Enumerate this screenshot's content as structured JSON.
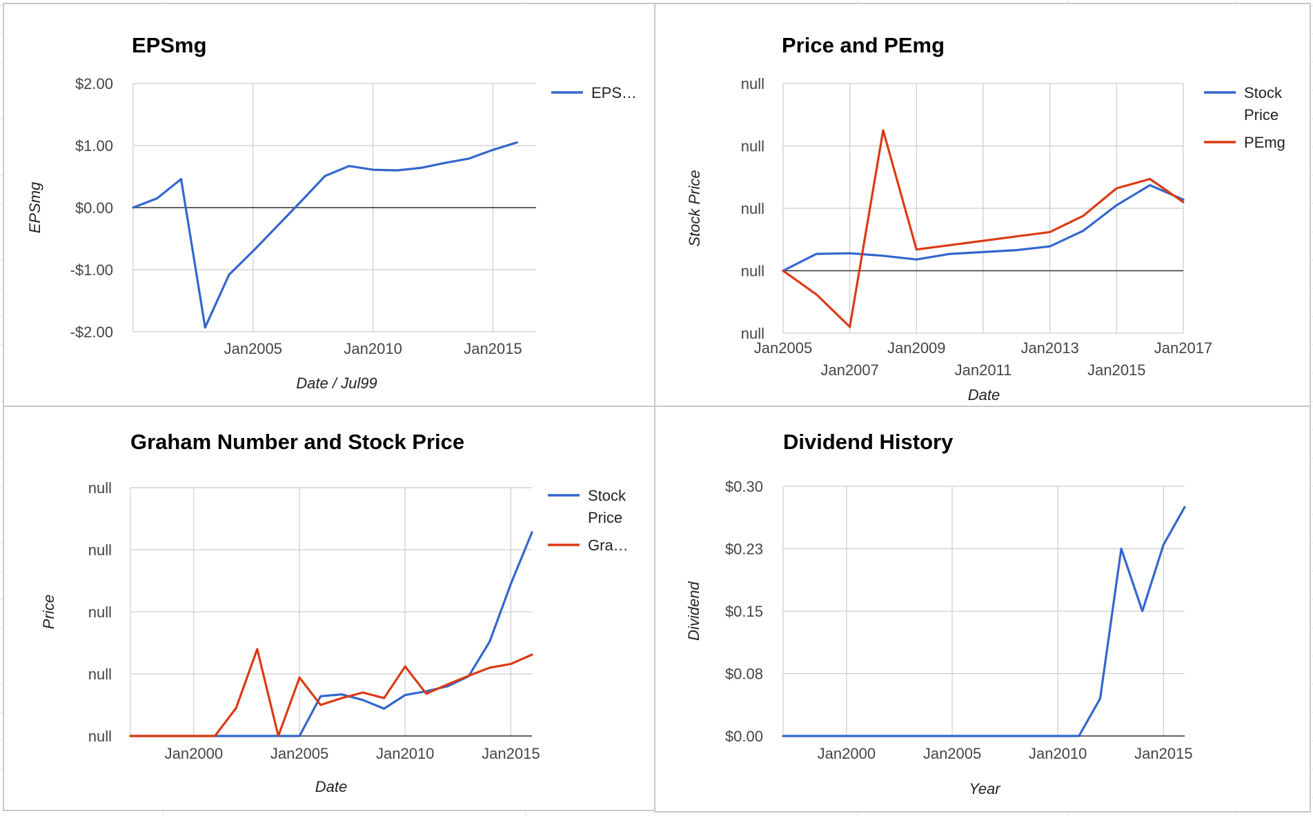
{
  "colors": {
    "blue": "#3366cc",
    "red": "#dc3912"
  },
  "chart_data": [
    {
      "id": "epsmg",
      "type": "line",
      "title": "EPSmg",
      "xlabel": "Date / Jul99",
      "ylabel": "EPSmg",
      "x_ticks": [
        "Jan2005",
        "Jan2010",
        "Jan2015"
      ],
      "y_ticks": [
        "$2.00",
        "$1.00",
        "$0.00",
        "-$1.00",
        "-$2.00"
      ],
      "ylim": [
        -2,
        2
      ],
      "legend": [
        "EPS…"
      ],
      "legend_position": "right",
      "series": [
        {
          "name": "EPS…",
          "color": "#3366cc",
          "x": [
            2000,
            2001,
            2002,
            2003,
            2004,
            2005,
            2006,
            2007,
            2008,
            2009,
            2010,
            2011,
            2012,
            2013,
            2014,
            2015,
            2016
          ],
          "values": [
            0.0,
            0.15,
            0.46,
            -1.93,
            -1.08,
            -0.7,
            -0.3,
            0.1,
            0.51,
            0.67,
            0.61,
            0.6,
            0.64,
            0.72,
            0.79,
            0.93,
            1.05
          ]
        }
      ]
    },
    {
      "id": "price-pemg",
      "type": "line",
      "title": "Price and PEmg",
      "xlabel": "Date",
      "ylabel": "Stock Price",
      "x_ticks_row1": [
        "Jan2005",
        "Jan2009",
        "Jan2013",
        "Jan2017"
      ],
      "x_ticks_row2": [
        "Jan2007",
        "Jan2011",
        "Jan2015"
      ],
      "y_ticks": [
        "null",
        "null",
        "null",
        "null",
        "null"
      ],
      "ylim": [
        -1,
        3
      ],
      "legend": [
        "Stock Price",
        "PEmg"
      ],
      "legend_position": "right",
      "series": [
        {
          "name": "Stock Price",
          "color": "#3366cc",
          "x": [
            2005,
            2006,
            2007,
            2008,
            2009,
            2010,
            2011,
            2012,
            2013,
            2014,
            2015,
            2016,
            2017
          ],
          "values": [
            0.0,
            0.27,
            0.28,
            0.24,
            0.18,
            0.27,
            0.3,
            0.33,
            0.39,
            0.64,
            1.05,
            1.37,
            1.14
          ]
        },
        {
          "name": "PEmg",
          "color": "#dc3912",
          "x": [
            2005,
            2006,
            2007,
            2008,
            2009,
            2010,
            2011,
            2012,
            2013,
            2014,
            2015,
            2016,
            2017
          ],
          "values": [
            0.0,
            -0.38,
            -0.9,
            2.25,
            0.34,
            0.41,
            0.48,
            0.55,
            0.62,
            0.88,
            1.32,
            1.47,
            1.1
          ]
        }
      ]
    },
    {
      "id": "graham",
      "type": "line",
      "title": "Graham Number and Stock Price",
      "xlabel": "Date",
      "ylabel": "Price",
      "x_ticks": [
        "Jan2000",
        "Jan2005",
        "Jan2010",
        "Jan2015"
      ],
      "y_ticks": [
        "null",
        "null",
        "null",
        "null",
        "null"
      ],
      "ylim": [
        0,
        4
      ],
      "legend": [
        "Stock Price",
        "Gra…"
      ],
      "legend_position": "right",
      "series": [
        {
          "name": "Stock Price",
          "color": "#3366cc",
          "x": [
            1997,
            1998,
            1999,
            2000,
            2001,
            2002,
            2003,
            2004,
            2005,
            2006,
            2007,
            2008,
            2009,
            2010,
            2011,
            2012,
            2013,
            2014,
            2015,
            2016
          ],
          "values": [
            0,
            0,
            0,
            0,
            0,
            0,
            0,
            0,
            0,
            0.64,
            0.67,
            0.58,
            0.44,
            0.66,
            0.72,
            0.8,
            0.96,
            1.52,
            2.45,
            3.28
          ]
        },
        {
          "name": "Gra…",
          "color": "#dc3912",
          "x": [
            1997,
            1998,
            1999,
            2000,
            2001,
            2002,
            2003,
            2004,
            2005,
            2006,
            2007,
            2008,
            2009,
            2010,
            2011,
            2012,
            2013,
            2014,
            2015,
            2016
          ],
          "values": [
            0,
            0,
            0,
            0,
            0,
            0.45,
            1.4,
            0,
            0.94,
            0.5,
            0.61,
            0.7,
            0.61,
            1.12,
            0.68,
            0.83,
            0.97,
            1.1,
            1.16,
            1.31
          ]
        }
      ]
    },
    {
      "id": "dividend",
      "type": "line",
      "title": "Dividend History",
      "xlabel": "Year",
      "ylabel": "Dividend",
      "x_ticks": [
        "Jan2000",
        "Jan2005",
        "Jan2010",
        "Jan2015"
      ],
      "y_ticks": [
        "$0.30",
        "$0.23",
        "$0.15",
        "$0.08",
        "$0.00"
      ],
      "ylim": [
        0,
        0.3
      ],
      "legend_position": "none",
      "series": [
        {
          "name": "",
          "color": "#3366cc",
          "x": [
            1997,
            1998,
            1999,
            2000,
            2001,
            2002,
            2003,
            2004,
            2005,
            2006,
            2007,
            2008,
            2009,
            2010,
            2011,
            2012,
            2013,
            2014,
            2015,
            2016
          ],
          "values": [
            0,
            0,
            0,
            0,
            0,
            0,
            0,
            0,
            0,
            0,
            0,
            0,
            0,
            0,
            0,
            0.045,
            0.225,
            0.15,
            0.23,
            0.275
          ]
        }
      ]
    }
  ]
}
